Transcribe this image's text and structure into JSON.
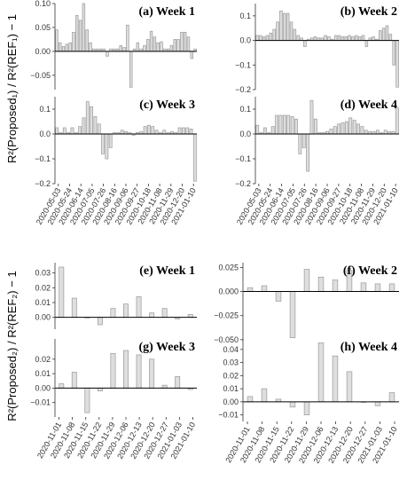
{
  "figure": {
    "ylabel_top": "R²(Proposed₁) / R²(REF₁) − 1",
    "ylabel_bottom": "R²(Proposed₂) / R²(REF₂) − 1",
    "colors": {
      "bar_fill": "#dedede",
      "bar_stroke": "#9a9a9a",
      "zero_line": "#000000"
    }
  },
  "chart_data": [
    {
      "type": "bar",
      "title": "(a) Week 1",
      "ylim": [
        -0.08,
        0.1
      ],
      "yticks": [
        0.1,
        0.05,
        0.0,
        -0.05
      ],
      "values": [
        0.045,
        0.018,
        0.01,
        0.015,
        0.018,
        0.04,
        0.075,
        0.065,
        0.1,
        0.045,
        0.018,
        0.005,
        0.005,
        0.005,
        0.005,
        -0.01,
        0.005,
        0.005,
        0.005,
        0.012,
        0.008,
        0.055,
        -0.075,
        0.005,
        0.018,
        0.005,
        0.012,
        0.025,
        0.042,
        0.03,
        0.018,
        0.02,
        0.005,
        0.005,
        0.012,
        0.025,
        0.025,
        0.04,
        0.04,
        0.03,
        -0.015,
        0.005
      ]
    },
    {
      "type": "bar",
      "title": "(b) Week 2",
      "ylim": [
        -0.2,
        0.15
      ],
      "yticks": [
        0.1,
        0.0,
        -0.1,
        -0.2
      ],
      "values": [
        0.02,
        0.02,
        0.015,
        0.02,
        0.03,
        0.045,
        0.075,
        0.12,
        0.11,
        0.11,
        0.075,
        0.045,
        0.02,
        0.01,
        -0.025,
        0.005,
        0.01,
        0.015,
        0.01,
        0.01,
        0.02,
        0.015,
        0.005,
        0.02,
        0.02,
        0.015,
        0.015,
        0.02,
        0.015,
        0.02,
        0.015,
        0.02,
        -0.025,
        0.01,
        0.015,
        0.005,
        0.04,
        0.05,
        0.06,
        0.025,
        -0.1,
        -0.19
      ]
    },
    {
      "type": "bar",
      "title": "(c) Week 3",
      "ylim": [
        -0.2,
        0.15
      ],
      "yticks": [
        0.1,
        0.0,
        -0.1,
        -0.2
      ],
      "values": [
        0.025,
        0.005,
        0.025,
        0.005,
        0.025,
        0.005,
        0.03,
        0.065,
        0.13,
        0.11,
        0.07,
        0.04,
        -0.08,
        -0.1,
        -0.055,
        0.005,
        0.005,
        0.015,
        0.01,
        0.005,
        -0.005,
        0.005,
        0.01,
        0.03,
        0.035,
        0.03,
        0.015,
        0.005,
        0.015,
        0.005,
        0.01,
        0.005,
        0.025,
        0.025,
        0.025,
        0.02,
        -0.19
      ]
    },
    {
      "type": "bar",
      "title": "(d) Week 4",
      "ylim": [
        -0.2,
        0.15
      ],
      "yticks": [
        0.1,
        0.0,
        -0.1,
        -0.2
      ],
      "values": [
        0.035,
        0.005,
        0.025,
        0.005,
        0.03,
        0.075,
        0.075,
        0.075,
        0.075,
        0.07,
        0.06,
        -0.08,
        -0.055,
        -0.15,
        0.135,
        0.06,
        0.005,
        0.005,
        0.01,
        0.02,
        0.03,
        0.04,
        0.045,
        0.05,
        0.065,
        0.055,
        0.04,
        0.03,
        0.015,
        0.01,
        0.01,
        0.015,
        0.005,
        0.015,
        0.01,
        0.01,
        0.105
      ]
    },
    {
      "type": "bar",
      "title": "(e) Week 1",
      "ylim": [
        -0.008,
        0.037
      ],
      "yticks": [
        0.03,
        0.02,
        0.01,
        0.0
      ],
      "values": [
        0.034,
        0.013,
        0.0,
        -0.005,
        0.006,
        0.009,
        0.014,
        0.003,
        0.006,
        -0.001,
        0.002
      ]
    },
    {
      "type": "bar",
      "title": "(f) Week 2",
      "ylim": [
        -0.052,
        0.03
      ],
      "yticks": [
        0.025,
        0.0,
        -0.025,
        -0.05
      ],
      "values": [
        0.004,
        0.006,
        -0.01,
        -0.048,
        0.023,
        0.015,
        0.012,
        0.022,
        0.009,
        0.008,
        0.008
      ]
    },
    {
      "type": "bar",
      "title": "(g) Week 3",
      "ylim": [
        -0.02,
        0.034
      ],
      "yticks": [
        0.02,
        0.01,
        0.0,
        -0.01
      ],
      "values": [
        0.003,
        0.011,
        -0.017,
        -0.002,
        0.024,
        0.026,
        0.023,
        0.02,
        0.002,
        0.008,
        -0.001
      ]
    },
    {
      "type": "bar",
      "title": "(h) Week 4",
      "ylim": [
        -0.015,
        0.048
      ],
      "yticks": [
        0.04,
        0.03,
        0.02,
        0.01,
        0.0,
        -0.01
      ],
      "values": [
        0.004,
        0.01,
        0.002,
        -0.004,
        -0.01,
        0.045,
        0.035,
        0.023,
        0.0,
        -0.003,
        0.007
      ]
    }
  ],
  "xticks_top": [
    "2020-05-03",
    "2020-05-24",
    "2020-06-14",
    "2020-07-05",
    "2020-07-26",
    "2020-08-16",
    "2020-09-06",
    "2020-09-27",
    "2020-10-18",
    "2020-11-08",
    "2020-11-29",
    "2020-12-20",
    "2021-01-10"
  ],
  "xticks_bottom": [
    "2020-11-01",
    "2020-11-08",
    "2020-11-15",
    "2020-11-22",
    "2020-11-29",
    "2020-12-06",
    "2020-12-13",
    "2020-12-20",
    "2020-12-27",
    "2021-01-03",
    "2021-01-10"
  ]
}
